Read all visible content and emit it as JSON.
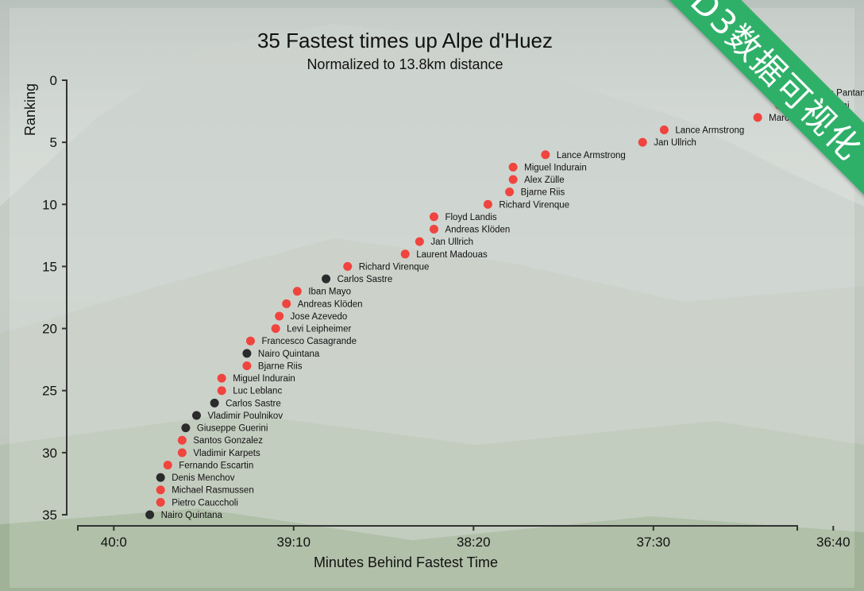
{
  "chart_data": {
    "type": "scatter",
    "title": "35 Fastest times up Alpe d'Huez",
    "subtitle": "Normalized to 13.8km distance",
    "xlabel": "Minutes Behind Fastest Time",
    "ylabel": "Ranking",
    "x_unit": "seconds",
    "x_ticks": [
      {
        "value": 2400,
        "label": "40:0"
      },
      {
        "value": 2350,
        "label": "39:10"
      },
      {
        "value": 2300,
        "label": "38:20"
      },
      {
        "value": 2250,
        "label": "37:30"
      },
      {
        "value": 2200,
        "label": "36:40"
      }
    ],
    "y_ticks": [
      0,
      5,
      10,
      15,
      20,
      25,
      30,
      35
    ],
    "xlim": [
      2210,
      2410
    ],
    "ylim": [
      0,
      35
    ],
    "series_colors": {
      "doping": "#f0443f",
      "clean": "#2b2b2b"
    },
    "points": [
      {
        "rank": 1,
        "seconds": 2210,
        "name": "Marco Pantani",
        "doping": true
      },
      {
        "rank": 2,
        "seconds": 2215,
        "name": "Marco Pantani",
        "doping": true
      },
      {
        "rank": 3,
        "seconds": 2221,
        "name": "Marco Pantani",
        "doping": true
      },
      {
        "rank": 4,
        "seconds": 2247,
        "name": "Lance Armstrong",
        "doping": true
      },
      {
        "rank": 5,
        "seconds": 2253,
        "name": "Jan Ullrich",
        "doping": true
      },
      {
        "rank": 6,
        "seconds": 2280,
        "name": "Lance Armstrong",
        "doping": true
      },
      {
        "rank": 7,
        "seconds": 2289,
        "name": "Miguel Indurain",
        "doping": true
      },
      {
        "rank": 8,
        "seconds": 2289,
        "name": "Alex Zülle",
        "doping": true
      },
      {
        "rank": 9,
        "seconds": 2290,
        "name": "Bjarne Riis",
        "doping": true
      },
      {
        "rank": 10,
        "seconds": 2296,
        "name": "Richard Virenque",
        "doping": true
      },
      {
        "rank": 11,
        "seconds": 2311,
        "name": "Floyd Landis",
        "doping": true
      },
      {
        "rank": 12,
        "seconds": 2311,
        "name": "Andreas Klöden",
        "doping": true
      },
      {
        "rank": 13,
        "seconds": 2315,
        "name": "Jan Ullrich",
        "doping": true
      },
      {
        "rank": 14,
        "seconds": 2319,
        "name": "Laurent Madouas",
        "doping": true
      },
      {
        "rank": 15,
        "seconds": 2335,
        "name": "Richard Virenque",
        "doping": true
      },
      {
        "rank": 16,
        "seconds": 2341,
        "name": "Carlos Sastre",
        "doping": false
      },
      {
        "rank": 17,
        "seconds": 2349,
        "name": "Iban Mayo",
        "doping": true
      },
      {
        "rank": 18,
        "seconds": 2352,
        "name": "Andreas Klöden",
        "doping": true
      },
      {
        "rank": 19,
        "seconds": 2354,
        "name": "Jose Azevedo",
        "doping": true
      },
      {
        "rank": 20,
        "seconds": 2355,
        "name": "Levi Leipheimer",
        "doping": true
      },
      {
        "rank": 21,
        "seconds": 2362,
        "name": "Francesco Casagrande",
        "doping": true
      },
      {
        "rank": 22,
        "seconds": 2363,
        "name": "Nairo Quintana",
        "doping": false
      },
      {
        "rank": 23,
        "seconds": 2363,
        "name": "Bjarne Riis",
        "doping": true
      },
      {
        "rank": 24,
        "seconds": 2370,
        "name": "Miguel Indurain",
        "doping": true
      },
      {
        "rank": 25,
        "seconds": 2370,
        "name": "Luc Leblanc",
        "doping": true
      },
      {
        "rank": 26,
        "seconds": 2372,
        "name": "Carlos Sastre",
        "doping": false
      },
      {
        "rank": 27,
        "seconds": 2377,
        "name": "Vladimir Poulnikov",
        "doping": false
      },
      {
        "rank": 28,
        "seconds": 2380,
        "name": "Giuseppe Guerini",
        "doping": false
      },
      {
        "rank": 29,
        "seconds": 2381,
        "name": "Santos Gonzalez",
        "doping": true
      },
      {
        "rank": 30,
        "seconds": 2381,
        "name": "Vladimir Karpets",
        "doping": true
      },
      {
        "rank": 31,
        "seconds": 2385,
        "name": "Fernando Escartin",
        "doping": true
      },
      {
        "rank": 32,
        "seconds": 2387,
        "name": "Denis Menchov",
        "doping": false
      },
      {
        "rank": 33,
        "seconds": 2387,
        "name": "Michael Rasmussen",
        "doping": true
      },
      {
        "rank": 34,
        "seconds": 2387,
        "name": "Pietro Cauccholi",
        "doping": true
      },
      {
        "rank": 35,
        "seconds": 2390,
        "name": "Nairo Quintana",
        "doping": false
      }
    ]
  },
  "banner": {
    "text": "D3数据可视化",
    "color": "#2fb069"
  }
}
